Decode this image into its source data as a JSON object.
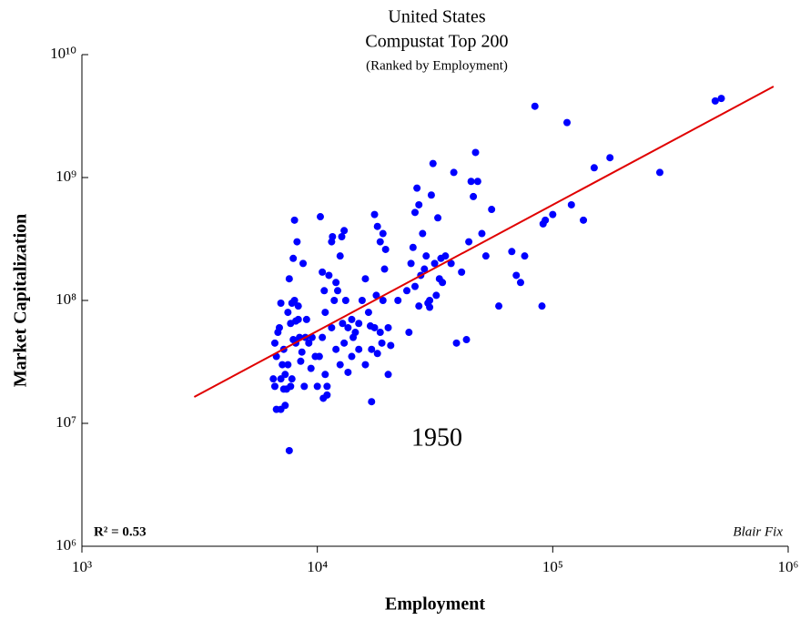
{
  "chart_data": {
    "type": "scatter",
    "title": [
      "United States",
      "Compustat Top 200"
    ],
    "subtitle": "(Ranked by Employment)",
    "xlabel": "Employment",
    "ylabel": "Market Capitalization",
    "annotations": [
      "1950",
      "R² = 0.53",
      "Blair Fix"
    ],
    "log_x": true,
    "log_y": true,
    "xlim": [
      1000,
      1000000
    ],
    "xticks": [
      {
        "value": 1000,
        "label": "10³"
      },
      {
        "value": 10000,
        "label": "10⁴"
      },
      {
        "value": 100000,
        "label": "10⁵"
      },
      {
        "value": 1000000,
        "label": "10⁶"
      }
    ],
    "ylim": [
      1000000,
      10000000000
    ],
    "yticks": [
      {
        "value": 1000000,
        "label": "10⁶"
      },
      {
        "value": 10000000,
        "label": "10⁷"
      },
      {
        "value": 100000000,
        "label": "10⁸"
      },
      {
        "value": 1000000000,
        "label": "10⁹"
      },
      {
        "value": 10000000000,
        "label": "10¹⁰"
      }
    ],
    "series": [
      {
        "color": "#0000ff",
        "x": [
          6500,
          6600,
          6700,
          6800,
          7000,
          7000,
          7200,
          7300,
          7400,
          7500,
          7600,
          7600,
          7700,
          7800,
          7900,
          8000,
          8100,
          8200,
          8300,
          8400,
          8500,
          8700,
          8800,
          9000,
          9200,
          9400,
          6600,
          6900,
          7100,
          7300,
          7500,
          7700,
          7900,
          8100,
          8300,
          8600,
          8900,
          7000,
          7800,
          6700,
          7200,
          8000,
          9500,
          9800,
          10300,
          10500,
          10700,
          10800,
          11000,
          11200,
          11500,
          11600,
          12000,
          12200,
          12500,
          12700,
          13000,
          13200,
          13500,
          14000,
          14500,
          15000,
          15500,
          16000,
          16500,
          17000,
          17000,
          17500,
          18000,
          18500,
          19000,
          19500,
          20000,
          20000,
          20500,
          10200,
          10500,
          10800,
          11000,
          11500,
          12000,
          12500,
          13000,
          13500,
          14000,
          15000,
          16000,
          17500,
          18000,
          18500,
          19000,
          10000,
          10600,
          12800,
          14200,
          16800,
          18800,
          11800,
          17800,
          19300,
          22000,
          24000,
          25000,
          25500,
          26000,
          26500,
          27000,
          27500,
          28000,
          29000,
          30000,
          30500,
          31000,
          31500,
          32000,
          32500,
          33000,
          34000,
          35000,
          37000,
          38000,
          39000,
          41000,
          43000,
          44000,
          45000,
          46000,
          47000,
          48000,
          50000,
          52000,
          55000,
          59000,
          24500,
          27000,
          28500,
          30000,
          26000,
          33500,
          29500,
          67000,
          70000,
          73000,
          76000,
          84000,
          90000,
          91000,
          93000,
          100000,
          115000,
          120000,
          135000,
          150000,
          175000,
          285000,
          490000,
          520000
        ],
        "values": [
          23000000.0,
          20000000.0,
          35000000.0,
          55000000.0,
          95000000.0,
          13000000.0,
          40000000.0,
          25000000.0,
          19000000.0,
          30000000.0,
          150000000.0,
          6000000.0,
          65000000.0,
          95000000.0,
          220000000.0,
          450000000.0,
          45000000.0,
          300000000.0,
          70000000.0,
          50000000.0,
          32000000.0,
          200000000.0,
          20000000.0,
          70000000.0,
          45000000.0,
          28000000.0,
          45000000.0,
          60000000.0,
          30000000.0,
          14000000.0,
          80000000.0,
          20000000.0,
          48000000.0,
          68000000.0,
          90000000.0,
          38000000.0,
          50000000.0,
          23000000.0,
          23000000.0,
          13000000.0,
          19000000.0,
          100000000.0,
          50000000.0,
          35000000.0,
          480000000.0,
          170000000.0,
          120000000.0,
          80000000.0,
          20000000.0,
          160000000.0,
          300000000.0,
          330000000.0,
          140000000.0,
          120000000.0,
          230000000.0,
          330000000.0,
          370000000.0,
          100000000.0,
          60000000.0,
          70000000.0,
          55000000.0,
          65000000.0,
          100000000.0,
          150000000.0,
          80000000.0,
          40000000.0,
          15000000.0,
          500000000.0,
          400000000.0,
          300000000.0,
          350000000.0,
          260000000.0,
          60000000.0,
          25000000.0,
          43000000.0,
          35000000.0,
          50000000.0,
          25000000.0,
          17000000.0,
          60000000.0,
          40000000.0,
          30000000.0,
          45000000.0,
          26000000.0,
          35000000.0,
          40000000.0,
          30000000.0,
          60000000.0,
          37000000.0,
          55000000.0,
          100000000.0,
          20000000.0,
          16000000.0,
          65000000.0,
          50000000.0,
          62000000.0,
          45000000.0,
          100000000.0,
          110000000.0,
          180000000.0,
          100000000.0,
          120000000.0,
          200000000.0,
          270000000.0,
          520000000.0,
          820000000.0,
          600000000.0,
          160000000.0,
          350000000.0,
          230000000.0,
          100000000.0,
          720000000.0,
          1300000000.0,
          200000000.0,
          110000000.0,
          470000000.0,
          150000000.0,
          140000000.0,
          230000000.0,
          200000000.0,
          1100000000.0,
          45000000.0,
          170000000.0,
          48000000.0,
          300000000.0,
          930000000.0,
          700000000.0,
          1600000000.0,
          930000000.0,
          350000000.0,
          230000000.0,
          550000000.0,
          90000000.0,
          55000000.0,
          90000000.0,
          180000000.0,
          88000000.0,
          130000000.0,
          220000000.0,
          95000000.0,
          250000000.0,
          160000000.0,
          140000000.0,
          230000000.0,
          3800000000.0,
          90000000.0,
          420000000.0,
          450000000.0,
          500000000.0,
          2800000000.0,
          600000000.0,
          450000000.0,
          1200000000.0,
          1450000000.0,
          1100000000.0,
          4200000000.0,
          4400000000.0
        ]
      }
    ],
    "fit": {
      "color": "#e00000",
      "x": [
        3000,
        867000
      ],
      "values": [
        16400000,
        5500000000
      ]
    }
  }
}
